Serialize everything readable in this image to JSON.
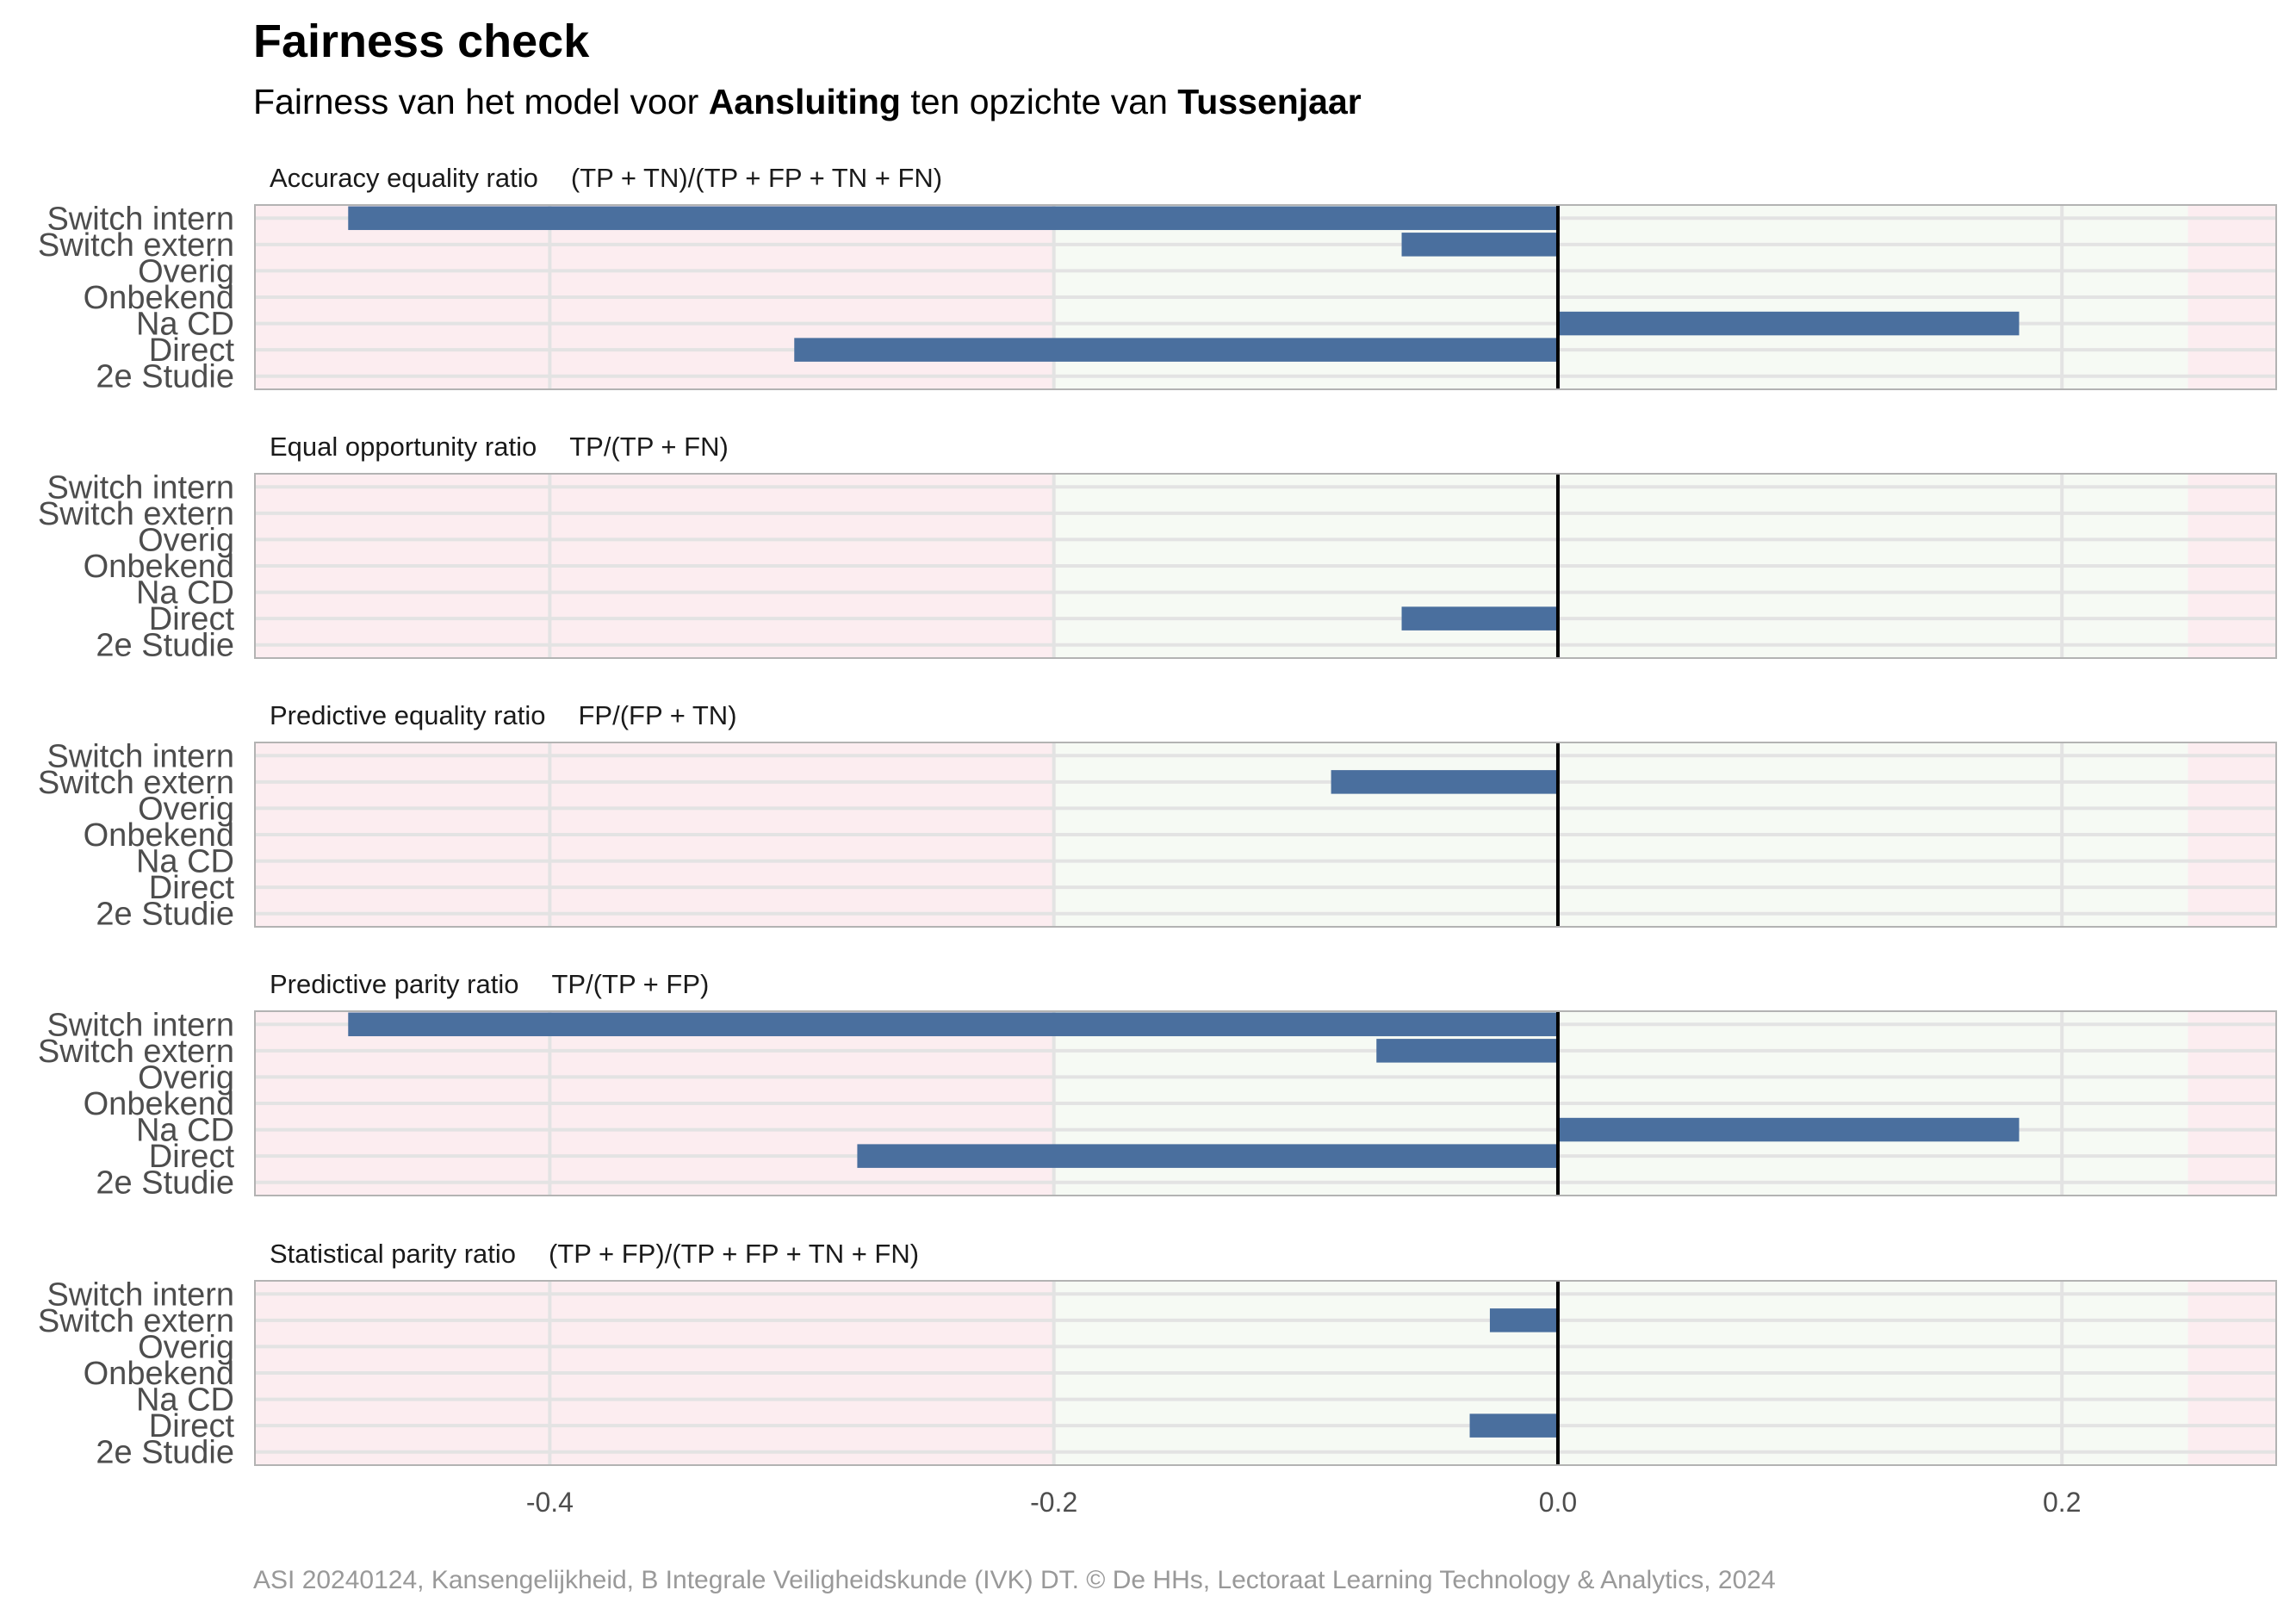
{
  "title": "Fairness check",
  "subtitle": {
    "prefix": "Fairness van het model voor ",
    "model": "Aansluiting",
    "middle": " ten opzichte van ",
    "group": "Tussenjaar"
  },
  "caption": "ASI 20240124, Kansengelijkheid, B Integrale Veiligheidskunde (IVK) DT. © De HHs, Lectoraat Learning Technology & Analytics, 2024",
  "colors": {
    "bar": "#4a6f9e",
    "fair_band": "#f6faf4",
    "unfair_band": "#fcedf0",
    "zero_line": "#000000",
    "grid": "#e3e3e3",
    "border": "#b3b3b3"
  },
  "chart_data": {
    "type": "bar",
    "orientation": "horizontal",
    "categories": [
      "Switch intern",
      "Switch extern",
      "Overig",
      "Onbekend",
      "Na CD",
      "Direct",
      "2e Studie"
    ],
    "xlim": [
      -0.517,
      0.285
    ],
    "x_ticks": [
      -0.4,
      -0.2,
      0.0,
      0.2
    ],
    "x_tick_labels": [
      "-0.4",
      "-0.2",
      "0.0",
      "0.2"
    ],
    "fair_range": [
      -0.2,
      0.25
    ],
    "grid": true,
    "panels": [
      {
        "title": "Accuracy equality ratio",
        "formula": "(TP + TN)/(TP + FP + TN + FN)",
        "values": [
          -0.48,
          -0.062,
          null,
          null,
          0.183,
          -0.303,
          null
        ]
      },
      {
        "title": "Equal opportunity ratio",
        "formula": "TP/(TP + FN)",
        "values": [
          null,
          null,
          null,
          null,
          null,
          -0.062,
          null
        ]
      },
      {
        "title": "Predictive equality ratio",
        "formula": "FP/(FP + TN)",
        "values": [
          null,
          -0.09,
          null,
          null,
          null,
          null,
          null
        ]
      },
      {
        "title": "Predictive parity ratio",
        "formula": "TP/(TP + FP)",
        "values": [
          -0.48,
          -0.072,
          null,
          null,
          0.183,
          -0.278,
          null
        ]
      },
      {
        "title": "Statistical parity ratio",
        "formula": "(TP + FP)/(TP + FP + TN + FN)",
        "values": [
          null,
          -0.027,
          null,
          null,
          null,
          -0.035,
          null
        ]
      }
    ]
  }
}
